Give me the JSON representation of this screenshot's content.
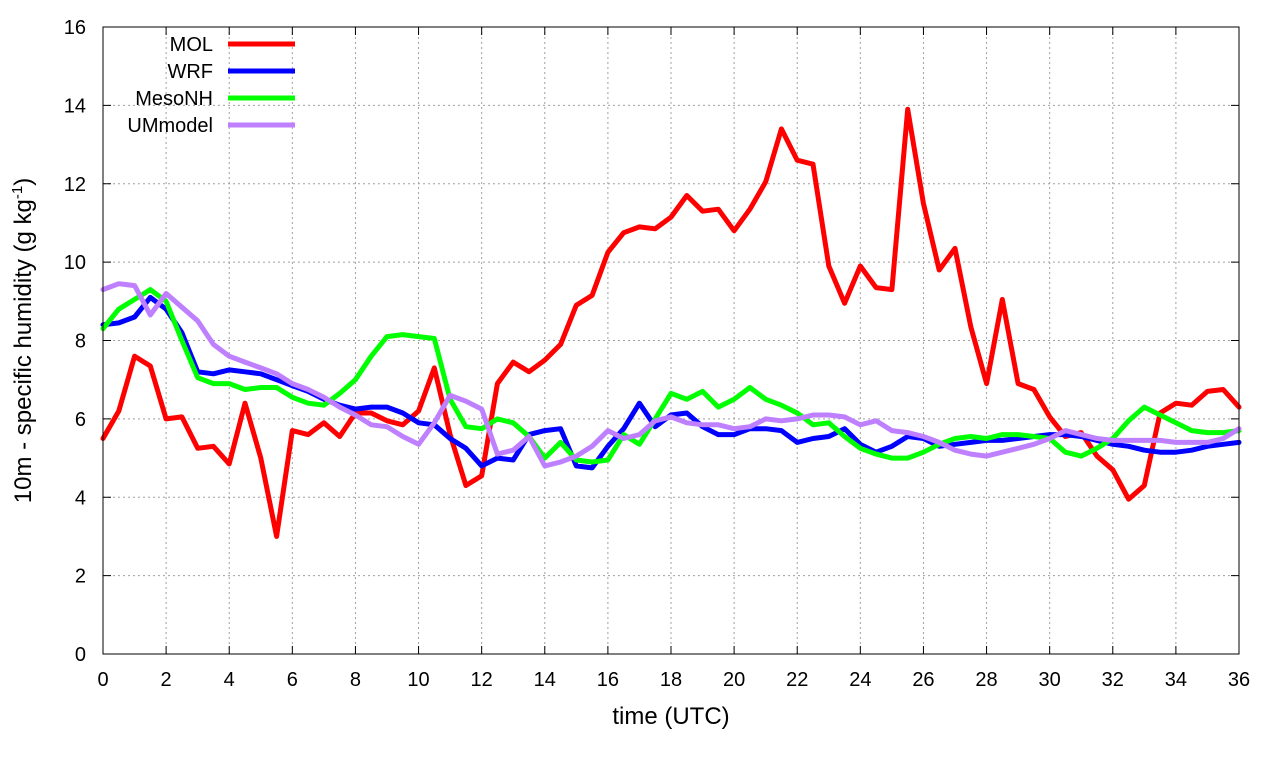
{
  "chart_data": {
    "type": "line",
    "xlabel": "time (UTC)",
    "ylabel": {
      "main": "10m - specific humidity (g kg",
      "sup": "-1",
      "end": ")"
    },
    "xlim": [
      0,
      36
    ],
    "ylim": [
      0,
      16
    ],
    "xticks": [
      0,
      2,
      4,
      6,
      8,
      10,
      12,
      14,
      16,
      18,
      20,
      22,
      24,
      26,
      28,
      30,
      32,
      34,
      36
    ],
    "yticks": [
      0,
      2,
      4,
      6,
      8,
      10,
      12,
      14,
      16
    ],
    "grid": true,
    "legend_position": "top-left",
    "series": [
      {
        "name": "MOL",
        "color": "#ff0000",
        "x": [
          0,
          0.5,
          1,
          1.5,
          2,
          2.5,
          3,
          3.5,
          4,
          4.5,
          5,
          5.5,
          6,
          6.5,
          7,
          7.5,
          8,
          8.5,
          9,
          9.5,
          10,
          10.5,
          11,
          11.5,
          12,
          12.5,
          13,
          13.5,
          14,
          14.5,
          15,
          15.5,
          16,
          16.5,
          17,
          17.5,
          18,
          18.5,
          19,
          19.5,
          20,
          20.5,
          21,
          21.5,
          22,
          22.5,
          23,
          23.5,
          24,
          24.5,
          25,
          25.5,
          26,
          26.5,
          27,
          27.5,
          28,
          28.5,
          29,
          29.5,
          30,
          30.5,
          31,
          31.5,
          32,
          32.5,
          33,
          33.5,
          34,
          34.5,
          35,
          35.5,
          36
        ],
        "y": [
          5.5,
          6.2,
          7.6,
          7.35,
          6.0,
          6.05,
          5.25,
          5.3,
          4.85,
          6.4,
          5.0,
          3.0,
          5.7,
          5.6,
          5.9,
          5.55,
          6.15,
          6.15,
          5.95,
          5.85,
          6.2,
          7.3,
          5.6,
          4.3,
          4.55,
          6.9,
          7.45,
          7.2,
          7.5,
          7.9,
          8.9,
          9.15,
          10.25,
          10.75,
          10.9,
          10.85,
          11.15,
          11.7,
          11.3,
          11.35,
          10.8,
          11.35,
          12.05,
          13.4,
          12.6,
          12.5,
          9.9,
          8.95,
          9.9,
          9.35,
          9.3,
          13.9,
          11.5,
          9.8,
          10.35,
          8.35,
          6.9,
          9.05,
          6.9,
          6.75,
          6.05,
          5.55,
          5.65,
          5.05,
          4.7,
          3.95,
          4.3,
          6.15,
          6.4,
          6.35,
          6.7,
          6.75,
          6.3
        ]
      },
      {
        "name": "WRF",
        "color": "#0000ff",
        "x": [
          0,
          0.5,
          1,
          1.5,
          2,
          2.5,
          3,
          3.5,
          4,
          4.5,
          5,
          5.5,
          6,
          6.5,
          7,
          7.5,
          8,
          8.5,
          9,
          9.5,
          10,
          10.5,
          11,
          11.5,
          12,
          12.5,
          13,
          13.5,
          14,
          14.5,
          15,
          15.5,
          16,
          16.5,
          17,
          17.5,
          18,
          18.5,
          19,
          19.5,
          20,
          20.5,
          21,
          21.5,
          22,
          22.5,
          23,
          23.5,
          24,
          24.5,
          25,
          25.5,
          26,
          26.5,
          27,
          27.5,
          28,
          28.5,
          29,
          29.5,
          30,
          30.5,
          31,
          31.5,
          32,
          32.5,
          33,
          33.5,
          34,
          34.5,
          35,
          35.5,
          36
        ],
        "y": [
          8.4,
          8.45,
          8.6,
          9.1,
          8.8,
          8.2,
          7.2,
          7.15,
          7.25,
          7.2,
          7.15,
          7.0,
          6.85,
          6.7,
          6.5,
          6.35,
          6.25,
          6.3,
          6.3,
          6.15,
          5.9,
          5.85,
          5.5,
          5.25,
          4.8,
          5.0,
          4.95,
          5.6,
          5.7,
          5.75,
          4.8,
          4.75,
          5.3,
          5.75,
          6.4,
          5.8,
          6.1,
          6.15,
          5.8,
          5.6,
          5.6,
          5.75,
          5.75,
          5.7,
          5.4,
          5.5,
          5.55,
          5.75,
          5.35,
          5.15,
          5.3,
          5.55,
          5.5,
          5.3,
          5.35,
          5.4,
          5.45,
          5.45,
          5.5,
          5.55,
          5.6,
          5.6,
          5.55,
          5.45,
          5.35,
          5.3,
          5.2,
          5.15,
          5.15,
          5.2,
          5.3,
          5.35,
          5.4
        ]
      },
      {
        "name": "MesoNH",
        "color": "#00ff00",
        "x": [
          0,
          0.5,
          1,
          1.5,
          2,
          2.5,
          3,
          3.5,
          4,
          4.5,
          5,
          5.5,
          6,
          6.5,
          7,
          7.5,
          8,
          8.5,
          9,
          9.5,
          10,
          10.5,
          11,
          11.5,
          12,
          12.5,
          13,
          13.5,
          14,
          14.5,
          15,
          15.5,
          16,
          16.5,
          17,
          17.5,
          18,
          18.5,
          19,
          19.5,
          20,
          20.5,
          21,
          21.5,
          22,
          22.5,
          23,
          23.5,
          24,
          24.5,
          25,
          25.5,
          26,
          26.5,
          27,
          27.5,
          28,
          28.5,
          29,
          29.5,
          30,
          30.5,
          31,
          31.5,
          32,
          32.5,
          33,
          33.5,
          34,
          34.5,
          35,
          35.5,
          36
        ],
        "y": [
          8.3,
          8.8,
          9.05,
          9.3,
          9.0,
          8.0,
          7.05,
          6.9,
          6.9,
          6.75,
          6.8,
          6.8,
          6.55,
          6.4,
          6.35,
          6.65,
          7.0,
          7.6,
          8.1,
          8.15,
          8.1,
          8.05,
          6.5,
          5.8,
          5.75,
          6.0,
          5.9,
          5.55,
          5.0,
          5.4,
          4.95,
          4.9,
          4.95,
          5.6,
          5.35,
          6.0,
          6.65,
          6.5,
          6.7,
          6.3,
          6.5,
          6.8,
          6.5,
          6.35,
          6.15,
          5.85,
          5.9,
          5.55,
          5.25,
          5.1,
          5.0,
          5.0,
          5.15,
          5.35,
          5.5,
          5.55,
          5.5,
          5.6,
          5.6,
          5.55,
          5.5,
          5.15,
          5.05,
          5.25,
          5.5,
          5.95,
          6.3,
          6.1,
          5.9,
          5.7,
          5.65,
          5.65,
          5.7
        ]
      },
      {
        "name": "UMmodel",
        "color": "#bf80ff",
        "x": [
          0,
          0.5,
          1,
          1.5,
          2,
          2.5,
          3,
          3.5,
          4,
          4.5,
          5,
          5.5,
          6,
          6.5,
          7,
          7.5,
          8,
          8.5,
          9,
          9.5,
          10,
          10.5,
          11,
          11.5,
          12,
          12.5,
          13,
          13.5,
          14,
          14.5,
          15,
          15.5,
          16,
          16.5,
          17,
          17.5,
          18,
          18.5,
          19,
          19.5,
          20,
          20.5,
          21,
          21.5,
          22,
          22.5,
          23,
          23.5,
          24,
          24.5,
          25,
          25.5,
          26,
          26.5,
          27,
          27.5,
          28,
          28.5,
          29,
          29.5,
          30,
          30.5,
          31,
          31.5,
          32,
          32.5,
          33,
          33.5,
          34,
          34.5,
          35,
          35.5,
          36
        ],
        "y": [
          9.3,
          9.45,
          9.4,
          8.65,
          9.2,
          8.85,
          8.5,
          7.9,
          7.6,
          7.45,
          7.3,
          7.15,
          6.9,
          6.75,
          6.55,
          6.3,
          6.1,
          5.85,
          5.8,
          5.55,
          5.35,
          5.9,
          6.6,
          6.45,
          6.25,
          5.1,
          5.2,
          5.55,
          4.8,
          4.9,
          5.05,
          5.3,
          5.7,
          5.5,
          5.6,
          5.95,
          6.05,
          5.9,
          5.85,
          5.85,
          5.75,
          5.8,
          6.0,
          5.95,
          6.0,
          6.1,
          6.1,
          6.05,
          5.85,
          5.95,
          5.7,
          5.65,
          5.55,
          5.4,
          5.2,
          5.1,
          5.05,
          5.15,
          5.25,
          5.35,
          5.5,
          5.7,
          5.6,
          5.5,
          5.45,
          5.45,
          5.45,
          5.45,
          5.4,
          5.4,
          5.4,
          5.5,
          5.75
        ]
      }
    ]
  }
}
